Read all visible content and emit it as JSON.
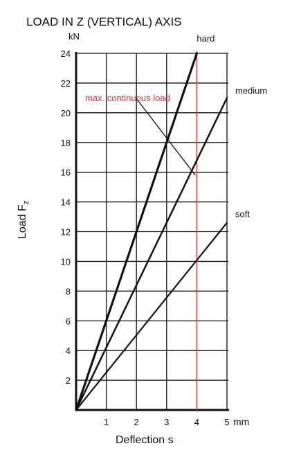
{
  "chart_data": {
    "type": "line",
    "title": "LOAD IN Z (VERTICAL) AXIS",
    "xlabel": "Deflection s",
    "ylabel": "Load F",
    "ylabel_subscript": "z",
    "x_unit": "mm",
    "y_unit": "kN",
    "xlim": [
      0,
      5
    ],
    "ylim": [
      0,
      24
    ],
    "x_ticks": [
      1,
      2,
      3,
      4,
      5
    ],
    "x_tick_labels": [
      "1",
      "2",
      "3",
      "4",
      "5"
    ],
    "y_ticks": [
      2,
      4,
      6,
      8,
      10,
      12,
      14,
      16,
      18,
      20,
      22,
      24
    ],
    "y_tick_labels": [
      "2",
      "4",
      "6",
      "8",
      "10",
      "12",
      "14",
      "16",
      "18",
      "20",
      "22",
      "24"
    ],
    "grid": true,
    "series": [
      {
        "name": "hard",
        "x": [
          0,
          4
        ],
        "y": [
          0,
          24
        ]
      },
      {
        "name": "medium",
        "x": [
          0,
          5
        ],
        "y": [
          0,
          21
        ]
      },
      {
        "name": "soft",
        "x": [
          0,
          5
        ],
        "y": [
          0,
          12.6
        ]
      }
    ],
    "reference_line": {
      "x": 4,
      "color": "#e0303a"
    },
    "annotation": {
      "text": "max. continuous load",
      "color": "#e0303a",
      "pointer_from": [
        1.9,
        20.5
      ],
      "pointer_to": [
        3.95,
        15.8
      ]
    },
    "colors": {
      "line": "#111111",
      "grid": "#111111",
      "accent": "#e0303a"
    }
  }
}
